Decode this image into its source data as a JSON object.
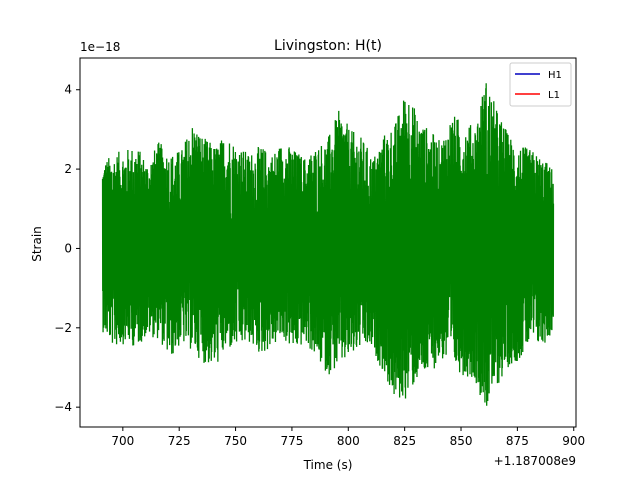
{
  "chart_data": {
    "type": "line",
    "title": "Livingston: H(t)",
    "xlabel": "Time (s)",
    "ylabel": "Strain",
    "x_offset_label": "+1.187008e9",
    "y_scale_label": "1e−18",
    "xlim": [
      681.0,
      901.0
    ],
    "ylim": [
      -4.5,
      4.8
    ],
    "x_ticks": [
      700,
      725,
      750,
      775,
      800,
      825,
      850,
      875,
      900
    ],
    "x_tick_labels": [
      "700",
      "725",
      "750",
      "775",
      "800",
      "825",
      "850",
      "875",
      "900"
    ],
    "y_ticks": [
      -4,
      -2,
      0,
      2,
      4
    ],
    "y_tick_labels": [
      "−4",
      "−2",
      "0",
      "2",
      "4"
    ],
    "legend": {
      "placement": "top-right",
      "entries": [
        {
          "label": "H1",
          "color": "#0000bf"
        },
        {
          "label": "L1",
          "color": "#ff0000"
        }
      ]
    },
    "series": [
      {
        "color": "#008000",
        "x_start": 691.0,
        "x_end": 891.0,
        "envelope": {
          "x": [
            691,
            696,
            701,
            706,
            711,
            716,
            721,
            726,
            731,
            736,
            741,
            746,
            751,
            756,
            761,
            766,
            771,
            776,
            781,
            786,
            791,
            796,
            801,
            806,
            811,
            816,
            821,
            826,
            831,
            836,
            841,
            846,
            851,
            856,
            861,
            866,
            871,
            876,
            881,
            886,
            891
          ],
          "upper": [
            2.2,
            2.4,
            2.5,
            2.6,
            2.2,
            2.7,
            2.4,
            2.5,
            3.2,
            2.8,
            2.6,
            2.9,
            2.6,
            2.4,
            2.6,
            2.4,
            2.7,
            2.5,
            2.3,
            2.6,
            2.8,
            3.5,
            3.0,
            2.8,
            2.3,
            2.9,
            3.2,
            4.1,
            3.3,
            3.0,
            2.7,
            3.4,
            3.2,
            3.1,
            4.3,
            3.5,
            2.9,
            2.6,
            2.5,
            2.3,
            2.0
          ],
          "lower": [
            -2.1,
            -2.5,
            -2.4,
            -2.5,
            -2.2,
            -2.3,
            -2.8,
            -2.4,
            -2.6,
            -2.9,
            -3.0,
            -2.6,
            -2.5,
            -2.4,
            -2.7,
            -2.5,
            -2.3,
            -2.6,
            -2.4,
            -2.8,
            -3.2,
            -3.0,
            -2.8,
            -2.5,
            -2.6,
            -3.2,
            -3.9,
            -3.8,
            -3.3,
            -3.2,
            -2.8,
            -3.0,
            -3.2,
            -3.3,
            -4.1,
            -3.5,
            -3.0,
            -2.8,
            -2.4,
            -2.5,
            -2.1
          ]
        }
      }
    ]
  }
}
